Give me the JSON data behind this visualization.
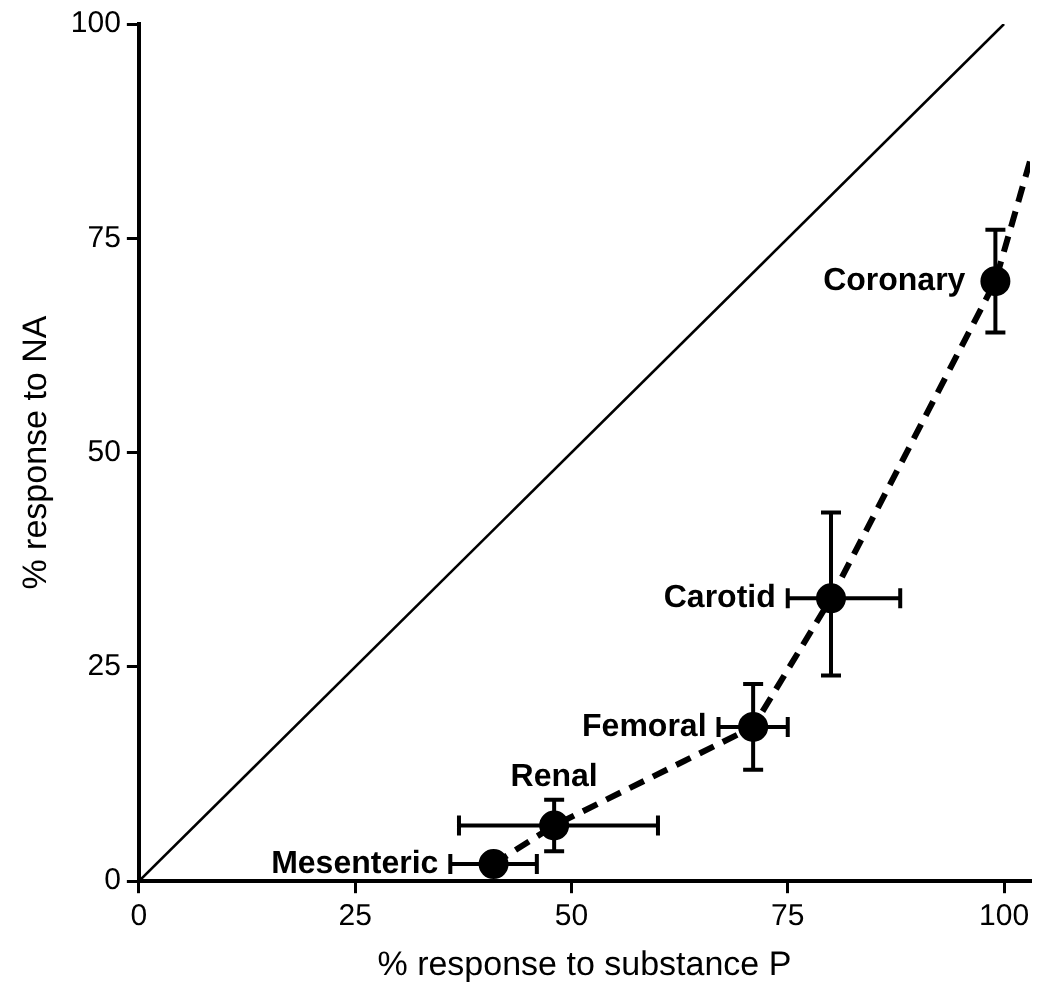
{
  "chart_data": {
    "type": "scatter",
    "xlabel": "% response to substance P",
    "ylabel": "% response to NA",
    "xlim": [
      0,
      103
    ],
    "ylim": [
      0,
      100
    ],
    "xticks": [
      0,
      25,
      50,
      75,
      100
    ],
    "yticks": [
      0,
      25,
      50,
      75,
      100
    ],
    "series": [
      {
        "type": "line",
        "x": [
          0,
          100
        ],
        "values": [
          0,
          100
        ],
        "color": "#000000",
        "line_style": "solid",
        "marker": "none"
      },
      {
        "type": "line",
        "x": [
          41,
          48,
          71,
          80,
          99,
          103
        ],
        "values": [
          2,
          6.5,
          18,
          33,
          70,
          84
        ],
        "color": "#000000",
        "line_style": "dashed",
        "marker": "none"
      },
      {
        "type": "scatter",
        "x": [
          41,
          48,
          71,
          80,
          99
        ],
        "values": [
          2,
          6.5,
          18,
          33,
          70
        ],
        "color": "#000000",
        "marker": "circle",
        "errors": [
          null,
          3,
          5,
          [
            24,
            43
          ],
          6
        ],
        "xerrors": [
          5,
          [
            37,
            60
          ],
          4,
          [
            75,
            88
          ],
          null
        ]
      }
    ],
    "annotations": [
      {
        "text": "Mesenteric",
        "x": 41,
        "y": 2
      },
      {
        "text": "Renal",
        "x": 48,
        "y": 6.5
      },
      {
        "text": "Femoral",
        "x": 71,
        "y": 18
      },
      {
        "text": "Carotid",
        "x": 80,
        "y": 33
      },
      {
        "text": "Coronary",
        "x": 99,
        "y": 70
      }
    ]
  }
}
